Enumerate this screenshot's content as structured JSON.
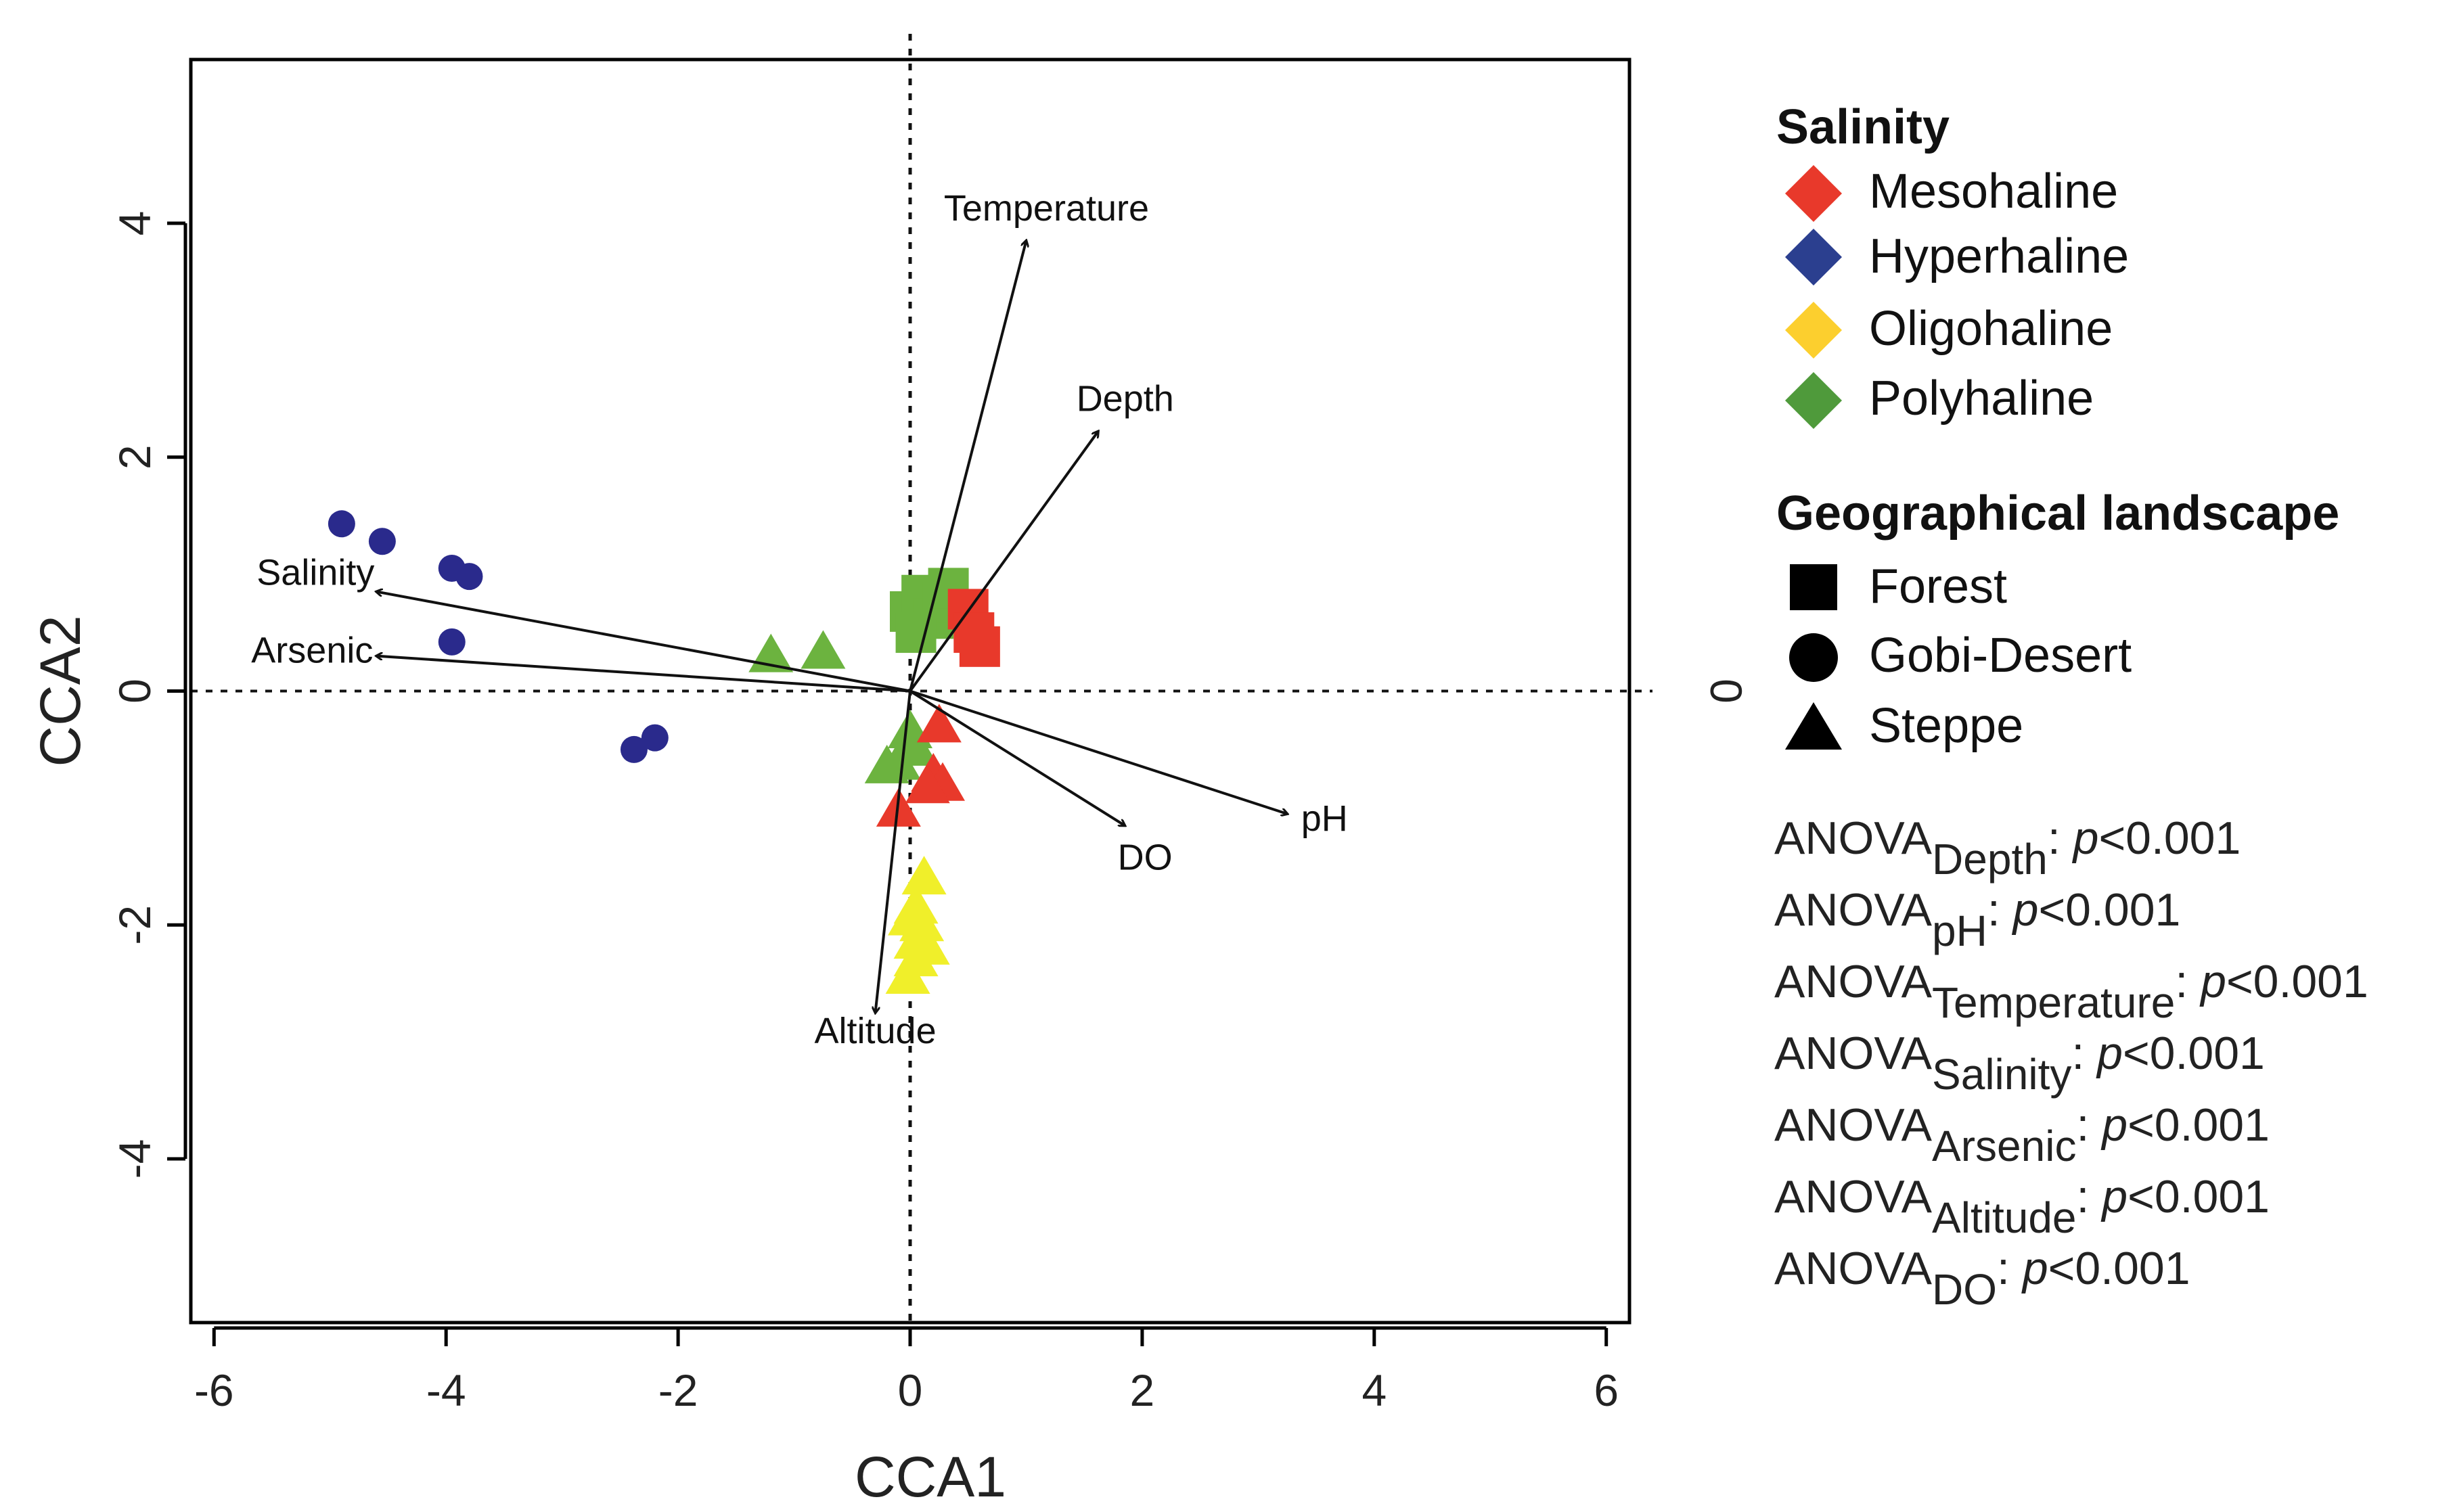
{
  "chart_data": {
    "type": "scatter",
    "xlabel": "CCA1",
    "ylabel": "CCA2",
    "right_axis_label": "0",
    "xlim": [
      -6.2,
      6.2
    ],
    "ylim": [
      -5.4,
      5.4
    ],
    "xticks": [
      -6,
      -4,
      -2,
      0,
      2,
      4,
      6
    ],
    "yticks": [
      -4,
      -2,
      0,
      2,
      4
    ],
    "xtick_labels": [
      "-6",
      "-4",
      "-2",
      "0",
      "2",
      "4",
      "6"
    ],
    "ytick_labels": [
      "-4",
      "-2",
      "0",
      "2",
      "4"
    ],
    "colors": {
      "Mesohaline": "#e8392b",
      "Hyperhaline": "#2a2a8c",
      "Oligohaline": "#f0ef2a",
      "Polyhaline": "#6cb33f",
      "legend_Mesohaline": "#e8392b",
      "legend_Hyperhaline": "#2b3f8f",
      "legend_Oligohaline": "#fccf2e",
      "legend_Polyhaline": "#4f9a3b"
    },
    "vectors": [
      {
        "name": "Temperature",
        "x": 1.0,
        "y": 3.85
      },
      {
        "name": "Depth",
        "x": 1.62,
        "y": 2.22
      },
      {
        "name": "Salinity",
        "x": -4.6,
        "y": 0.85
      },
      {
        "name": "Arsenic",
        "x": -4.6,
        "y": 0.3
      },
      {
        "name": "pH",
        "x": 3.25,
        "y": -1.05
      },
      {
        "name": "DO",
        "x": 1.85,
        "y": -1.15
      },
      {
        "name": "Altitude",
        "x": -0.3,
        "y": -2.75
      }
    ],
    "points": [
      {
        "x": -4.9,
        "y": 1.43,
        "salinity": "Hyperhaline",
        "landscape": "Gobi-Desert"
      },
      {
        "x": -4.55,
        "y": 1.28,
        "salinity": "Hyperhaline",
        "landscape": "Gobi-Desert"
      },
      {
        "x": -3.95,
        "y": 1.05,
        "salinity": "Hyperhaline",
        "landscape": "Gobi-Desert"
      },
      {
        "x": -3.8,
        "y": 0.98,
        "salinity": "Hyperhaline",
        "landscape": "Gobi-Desert"
      },
      {
        "x": -3.95,
        "y": 0.42,
        "salinity": "Hyperhaline",
        "landscape": "Gobi-Desert"
      },
      {
        "x": -2.2,
        "y": -0.4,
        "salinity": "Hyperhaline",
        "landscape": "Gobi-Desert"
      },
      {
        "x": -2.38,
        "y": -0.5,
        "salinity": "Hyperhaline",
        "landscape": "Gobi-Desert"
      },
      {
        "x": -1.2,
        "y": 0.3,
        "salinity": "Polyhaline",
        "landscape": "Steppe"
      },
      {
        "x": -0.75,
        "y": 0.33,
        "salinity": "Polyhaline",
        "landscape": "Steppe"
      },
      {
        "x": 0.0,
        "y": -0.35,
        "salinity": "Polyhaline",
        "landscape": "Steppe"
      },
      {
        "x": 0.05,
        "y": -0.5,
        "salinity": "Polyhaline",
        "landscape": "Steppe"
      },
      {
        "x": -0.1,
        "y": -0.62,
        "salinity": "Polyhaline",
        "landscape": "Steppe"
      },
      {
        "x": -0.2,
        "y": -0.65,
        "salinity": "Polyhaline",
        "landscape": "Steppe"
      },
      {
        "x": 0.0,
        "y": 0.68,
        "salinity": "Polyhaline",
        "landscape": "Forest"
      },
      {
        "x": 0.1,
        "y": 0.82,
        "salinity": "Polyhaline",
        "landscape": "Forest"
      },
      {
        "x": 0.2,
        "y": 0.62,
        "salinity": "Polyhaline",
        "landscape": "Forest"
      },
      {
        "x": 0.28,
        "y": 0.76,
        "salinity": "Polyhaline",
        "landscape": "Forest"
      },
      {
        "x": 0.05,
        "y": 0.5,
        "salinity": "Polyhaline",
        "landscape": "Forest"
      },
      {
        "x": 0.33,
        "y": 0.88,
        "salinity": "Polyhaline",
        "landscape": "Forest"
      },
      {
        "x": 0.5,
        "y": 0.7,
        "salinity": "Mesohaline",
        "landscape": "Forest"
      },
      {
        "x": 0.55,
        "y": 0.5,
        "salinity": "Mesohaline",
        "landscape": "Forest"
      },
      {
        "x": 0.6,
        "y": 0.38,
        "salinity": "Mesohaline",
        "landscape": "Forest"
      },
      {
        "x": 0.25,
        "y": -0.3,
        "salinity": "Mesohaline",
        "landscape": "Steppe"
      },
      {
        "x": 0.2,
        "y": -0.72,
        "salinity": "Mesohaline",
        "landscape": "Steppe"
      },
      {
        "x": 0.28,
        "y": -0.8,
        "salinity": "Mesohaline",
        "landscape": "Steppe"
      },
      {
        "x": 0.15,
        "y": -0.82,
        "salinity": "Mesohaline",
        "landscape": "Steppe"
      },
      {
        "x": -0.1,
        "y": -1.02,
        "salinity": "Mesohaline",
        "landscape": "Steppe"
      },
      {
        "x": 0.12,
        "y": -1.6,
        "salinity": "Oligohaline",
        "landscape": "Steppe"
      },
      {
        "x": 0.05,
        "y": -1.85,
        "salinity": "Oligohaline",
        "landscape": "Steppe"
      },
      {
        "x": 0.1,
        "y": -2.0,
        "salinity": "Oligohaline",
        "landscape": "Steppe"
      },
      {
        "x": 0.05,
        "y": -2.15,
        "salinity": "Oligohaline",
        "landscape": "Steppe"
      },
      {
        "x": 0.15,
        "y": -2.2,
        "salinity": "Oligohaline",
        "landscape": "Steppe"
      },
      {
        "x": 0.05,
        "y": -2.3,
        "salinity": "Oligohaline",
        "landscape": "Steppe"
      },
      {
        "x": -0.02,
        "y": -2.45,
        "salinity": "Oligohaline",
        "landscape": "Steppe"
      },
      {
        "x": 0.0,
        "y": -1.95,
        "salinity": "Oligohaline",
        "landscape": "Steppe"
      }
    ]
  },
  "legend": {
    "salinity_title": "Salinity",
    "salinity_items": [
      "Mesohaline",
      "Hyperhaline",
      "Oligohaline",
      "Polyhaline"
    ],
    "landscape_title": "Geographical landscape",
    "landscape_items": [
      {
        "label": "Forest",
        "shape": "square"
      },
      {
        "label": "Gobi-Desert",
        "shape": "circle"
      },
      {
        "label": "Steppe",
        "shape": "triangle"
      }
    ]
  },
  "anova": {
    "prefix": "ANOVA",
    "entries": [
      {
        "sub": "Depth",
        "p_label": "p",
        "result": "<0.001"
      },
      {
        "sub": "pH",
        "p_label": "p",
        "result": "<0.001"
      },
      {
        "sub": "Temperature",
        "p_label": "p",
        "result": "<0.001"
      },
      {
        "sub": "Salinity",
        "p_label": "p",
        "result": "<0.001"
      },
      {
        "sub": "Arsenic",
        "p_label": "p",
        "result": "<0.001"
      },
      {
        "sub": "Altitude",
        "p_label": "p",
        "result": "<0.001"
      },
      {
        "sub": "DO",
        "p_label": "p",
        "result": "<0.001"
      }
    ]
  }
}
